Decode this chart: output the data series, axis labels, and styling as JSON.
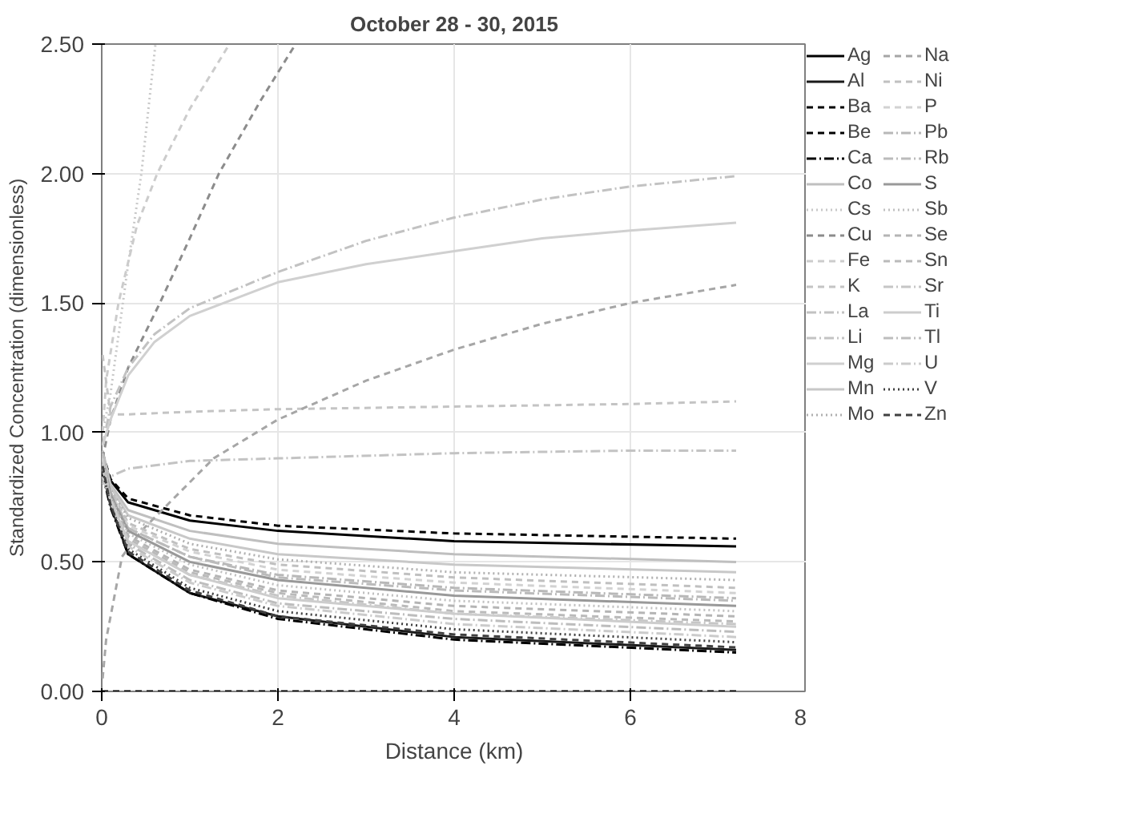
{
  "chart_data": {
    "type": "line",
    "title": "October 28 - 30, 2015",
    "xlabel": "Distance (km)",
    "ylabel": "Standardized Concentration (dimensionless)",
    "xlim": [
      0,
      8
    ],
    "ylim": [
      0,
      2.5
    ],
    "xticks": [
      0,
      2,
      4,
      6,
      8
    ],
    "yticks": [
      {
        "value": 0,
        "label": "0.00"
      },
      {
        "value": 0.5,
        "label": "0.50"
      },
      {
        "value": 1,
        "label": "1.00"
      },
      {
        "value": 1.5,
        "label": "1.50"
      },
      {
        "value": 2,
        "label": "2.00"
      },
      {
        "value": 2.5,
        "label": "2.50"
      }
    ],
    "grid": true,
    "legend": "right",
    "x": [
      0.01,
      0.1,
      0.3,
      1,
      2,
      4,
      7.2
    ],
    "series": [
      {
        "name": "Ag",
        "color": "#000000",
        "line_style": "solid",
        "values": [
          0.9,
          0.815,
          0.73,
          0.66,
          0.62,
          0.58,
          0.56
        ]
      },
      {
        "name": "Al",
        "color": "#1a1a1a",
        "line_style": "solid",
        "values": [
          0.85,
          0.72,
          0.53,
          0.38,
          0.29,
          0.21,
          0.16
        ]
      },
      {
        "name": "Ba",
        "color": "#000000",
        "line_style": "dashed",
        "values": [
          0.92,
          0.82,
          0.745,
          0.68,
          0.64,
          0.61,
          0.59
        ]
      },
      {
        "name": "Be",
        "color": "#000000",
        "line_style": "dashed",
        "x": [
          0,
          7.2
        ],
        "values": [
          0,
          0
        ]
      },
      {
        "name": "Ca",
        "color": "#000000",
        "line_style": "dashdot",
        "values": [
          0.84,
          0.71,
          0.53,
          0.38,
          0.28,
          0.2,
          0.15
        ]
      },
      {
        "name": "Co",
        "color": "#bfbfbf",
        "line_style": "solid",
        "values": [
          0.93,
          0.8,
          0.7,
          0.62,
          0.57,
          0.53,
          0.5
        ]
      },
      {
        "name": "Cs",
        "color": "#c8c8c8",
        "line_style": "dotted",
        "x": [
          0.01,
          0.1,
          0.2,
          0.3,
          0.45,
          0.61
        ],
        "values": [
          1.0,
          1.15,
          1.4,
          1.65,
          2.0,
          2.5
        ]
      },
      {
        "name": "Cu",
        "color": "#8c8c8c",
        "line_style": "dashed",
        "x": [
          0.01,
          0.1,
          0.3,
          0.66,
          1.0,
          1.33,
          1.8,
          2.2
        ],
        "values": [
          0.9,
          1.05,
          1.25,
          1.5,
          1.75,
          2.0,
          2.28,
          2.5
        ]
      },
      {
        "name": "Fe",
        "color": "#cccccc",
        "line_style": "dashed",
        "x": [
          0.01,
          0.05,
          0.19,
          0.4,
          0.63,
          1.0,
          1.45
        ],
        "values": [
          1.0,
          1.2,
          1.5,
          1.8,
          2.0,
          2.25,
          2.5
        ]
      },
      {
        "name": "K",
        "color": "#c4c4c4",
        "line_style": "dashed",
        "x": [
          0.01,
          0.1,
          0.3,
          1,
          2,
          4,
          6,
          7.2
        ],
        "values": [
          1.3,
          1.07,
          1.07,
          1.08,
          1.09,
          1.1,
          1.11,
          1.12
        ]
      },
      {
        "name": "La",
        "color": "#c2c2c2",
        "line_style": "dashdot",
        "x": [
          0.01,
          0.1,
          0.3,
          0.6,
          1,
          2,
          3,
          4,
          5,
          6,
          7.2
        ],
        "values": [
          0.95,
          1.1,
          1.25,
          1.38,
          1.48,
          1.62,
          1.74,
          1.83,
          1.9,
          1.95,
          1.99
        ]
      },
      {
        "name": "Li",
        "color": "#c3c3c3",
        "line_style": "dashdot",
        "x": [
          0.01,
          0.1,
          0.3,
          1,
          2,
          4,
          6,
          7.2
        ],
        "values": [
          0.8,
          0.83,
          0.86,
          0.89,
          0.9,
          0.92,
          0.93,
          0.93
        ]
      },
      {
        "name": "Mg",
        "color": "#d0d0d0",
        "line_style": "solid",
        "x": [
          0.01,
          0.1,
          0.3,
          0.6,
          1,
          2,
          3,
          4,
          5,
          6,
          7.2
        ],
        "values": [
          0.95,
          1.05,
          1.22,
          1.35,
          1.45,
          1.58,
          1.65,
          1.7,
          1.75,
          1.78,
          1.81
        ]
      },
      {
        "name": "Mn",
        "color": "#c8c8c8",
        "line_style": "solid",
        "values": [
          0.87,
          0.79,
          0.68,
          0.59,
          0.53,
          0.49,
          0.46
        ]
      },
      {
        "name": "Mo",
        "color": "#b0b0b0",
        "line_style": "dotted",
        "values": [
          0.9,
          0.78,
          0.67,
          0.57,
          0.51,
          0.46,
          0.43
        ]
      },
      {
        "name": "Na",
        "color": "#a6a6a6",
        "line_style": "dashed",
        "x": [
          0.01,
          0.05,
          0.23,
          0.45,
          1.27,
          2,
          3,
          4,
          5,
          6,
          7.2
        ],
        "values": [
          0.05,
          0.2,
          0.52,
          0.62,
          0.9,
          1.05,
          1.2,
          1.32,
          1.42,
          1.5,
          1.57
        ]
      },
      {
        "name": "Ni",
        "color": "#c0c0c0",
        "line_style": "dashed",
        "values": [
          0.88,
          0.78,
          0.65,
          0.55,
          0.49,
          0.44,
          0.4
        ]
      },
      {
        "name": "P",
        "color": "#d2d2d2",
        "line_style": "dashed",
        "values": [
          0.91,
          0.77,
          0.64,
          0.54,
          0.47,
          0.42,
          0.38
        ]
      },
      {
        "name": "Pb",
        "color": "#b8b8b8",
        "line_style": "dashdot",
        "values": [
          0.9,
          0.77,
          0.63,
          0.52,
          0.45,
          0.4,
          0.36
        ]
      },
      {
        "name": "Rb",
        "color": "#bbbbbb",
        "line_style": "dashdot",
        "values": [
          0.88,
          0.76,
          0.63,
          0.52,
          0.44,
          0.39,
          0.35
        ]
      },
      {
        "name": "S",
        "color": "#999999",
        "line_style": "solid",
        "values": [
          0.9,
          0.76,
          0.62,
          0.5,
          0.43,
          0.37,
          0.33
        ]
      },
      {
        "name": "Sb",
        "color": "#c0c0c0",
        "line_style": "dotted",
        "values": [
          0.87,
          0.75,
          0.61,
          0.49,
          0.41,
          0.35,
          0.31
        ]
      },
      {
        "name": "Se",
        "color": "#b5b5b5",
        "line_style": "dashed",
        "values": [
          0.86,
          0.75,
          0.6,
          0.47,
          0.39,
          0.33,
          0.29
        ]
      },
      {
        "name": "Sn",
        "color": "#bababa",
        "line_style": "dashed",
        "values": [
          0.9,
          0.74,
          0.59,
          0.46,
          0.38,
          0.31,
          0.27
        ]
      },
      {
        "name": "Sr",
        "color": "#c6c6c6",
        "line_style": "dashdot",
        "values": [
          0.86,
          0.74,
          0.58,
          0.45,
          0.37,
          0.3,
          0.26
        ]
      },
      {
        "name": "Ti",
        "color": "#cdcdcd",
        "line_style": "solid",
        "values": [
          0.83,
          0.74,
          0.58,
          0.45,
          0.36,
          0.3,
          0.25
        ]
      },
      {
        "name": "Tl",
        "color": "#bdbdbd",
        "line_style": "dashdot",
        "values": [
          0.92,
          0.73,
          0.57,
          0.43,
          0.34,
          0.28,
          0.23
        ]
      },
      {
        "name": "U",
        "color": "#cbcbcb",
        "line_style": "dashdot",
        "values": [
          0.9,
          0.73,
          0.56,
          0.42,
          0.33,
          0.26,
          0.21
        ]
      },
      {
        "name": "V",
        "color": "#404040",
        "line_style": "dotted",
        "values": [
          0.85,
          0.72,
          0.55,
          0.4,
          0.31,
          0.24,
          0.19
        ]
      },
      {
        "name": "Zn",
        "color": "#404040",
        "line_style": "dashed",
        "values": [
          0.87,
          0.72,
          0.54,
          0.39,
          0.29,
          0.22,
          0.17
        ]
      }
    ]
  }
}
